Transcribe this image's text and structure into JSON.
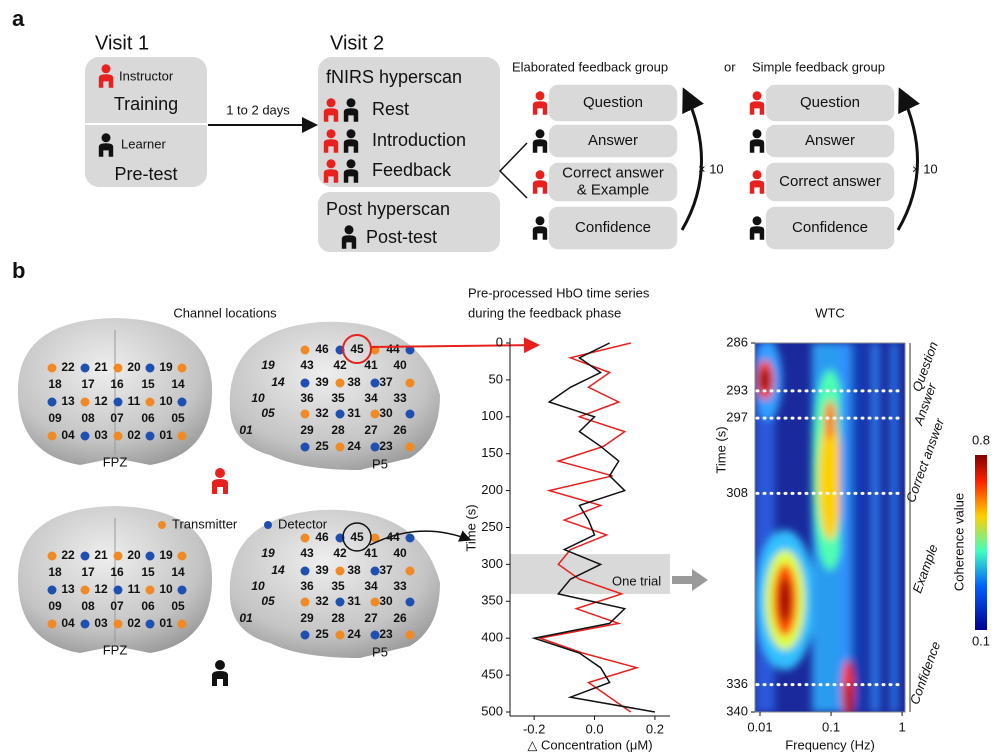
{
  "panel_a": {
    "label": "a",
    "visit1": {
      "title": "Visit 1",
      "instructor": "Instructor",
      "training": "Training",
      "learner": "Learner",
      "pretest": "Pre-test"
    },
    "interval": "1 to 2 days",
    "visit2": {
      "title": "Visit 2",
      "hyperscan": "fNIRS hyperscan",
      "steps": [
        "Rest",
        "Introduction",
        "Feedback"
      ],
      "post_title": "Post hyperscan",
      "post_test": "Post-test"
    },
    "or": "or",
    "elaborated": {
      "title": "Elaborated feedback group",
      "steps": [
        [
          "Question"
        ],
        [
          "Answer"
        ],
        [
          "Correct answer",
          "& Example"
        ],
        [
          "Confidence"
        ]
      ],
      "repeat": "× 10"
    },
    "simple": {
      "title": "Simple feedback group",
      "steps": [
        [
          "Question"
        ],
        [
          "Answer"
        ],
        [
          "Correct answer"
        ],
        [
          "Confidence"
        ]
      ],
      "repeat": "× 10"
    }
  },
  "panel_b": {
    "label": "b",
    "channels": {
      "title": "Channel locations",
      "front": [
        [
          "22",
          "21",
          "20",
          "19"
        ],
        [
          "18",
          "17",
          "16",
          "15",
          "14"
        ],
        [
          "13",
          "12",
          "11",
          "10"
        ],
        [
          "09",
          "08",
          "07",
          "06",
          "05"
        ],
        [
          "04",
          "03",
          "02",
          "01"
        ]
      ],
      "side": [
        [
          "46",
          "45",
          "44"
        ],
        [
          "19",
          "43",
          "42",
          "41",
          "40"
        ],
        [
          "14",
          "39",
          "38",
          "37"
        ],
        [
          "10",
          "36",
          "35",
          "34",
          "33"
        ],
        [
          "05",
          "32",
          "31",
          "30"
        ],
        [
          "01",
          "29",
          "28",
          "27",
          "26"
        ],
        [
          "25",
          "24",
          "23"
        ]
      ],
      "fpz": "FPZ",
      "p5": "P5",
      "transmitter": "Transmitter",
      "detector": "Detector"
    },
    "timeseries": {
      "type": "line",
      "title": [
        "Pre-processed HbO time series",
        "during the feedback phase"
      ],
      "xlabel": "△ Concentration (μM)",
      "ylabel": "Time (s)",
      "annotation": "One trial",
      "xlim": [
        -0.28,
        0.25
      ],
      "xticks": [
        -0.2,
        {
          "value": 0,
          "label": "0.0"
        },
        0.2
      ],
      "ylim": [
        0,
        500
      ],
      "yticks": [
        0,
        50,
        100,
        150,
        200,
        250,
        300,
        350,
        400,
        450,
        500
      ],
      "time": [
        0,
        20,
        40,
        60,
        80,
        100,
        120,
        140,
        160,
        180,
        200,
        220,
        240,
        260,
        280,
        300,
        320,
        340,
        360,
        380,
        400,
        420,
        440,
        460,
        480,
        500
      ],
      "series": [
        {
          "color": "#e8201e",
          "values": [
            0.12,
            -0.08,
            0.05,
            -0.02,
            0.08,
            -0.05,
            0.1,
            0.03,
            -0.12,
            0.06,
            -0.15,
            0.02,
            -0.1,
            0.04,
            -0.08,
            -0.12,
            -0.05,
            0.09,
            -0.06,
            0.08,
            -0.18,
            -0.04,
            0.14,
            -0.02,
            0.05,
            0.12
          ]
        },
        {
          "color": "#111111",
          "values": [
            0.05,
            -0.05,
            0.02,
            -0.08,
            -0.15,
            0.0,
            -0.05,
            0.02,
            0.08,
            0.05,
            0.1,
            -0.05,
            -0.02,
            0.0,
            -0.1,
            0.02,
            -0.08,
            -0.12,
            0.1,
            0.05,
            -0.2,
            -0.05,
            0.02,
            0.05,
            -0.08,
            0.2
          ]
        }
      ]
    },
    "wtc": {
      "title": "WTC",
      "xlabel": "Frequency (Hz)",
      "ylabel": "Time (s)",
      "log_x": true,
      "xlim": [
        0.0085,
        1.1
      ],
      "xticks": [
        0.01,
        0.1,
        1
      ],
      "ylim": [
        286,
        340
      ],
      "yticks": [
        286,
        293,
        297,
        308,
        336,
        340
      ],
      "phases": [
        "Question",
        "Answer",
        "Correct answer",
        "Example",
        "Confidence"
      ],
      "colorbar": {
        "label": "Coherence value",
        "lim": [
          0.1,
          0.8
        ],
        "ticks": [
          0.8,
          0.1
        ]
      }
    }
  }
}
